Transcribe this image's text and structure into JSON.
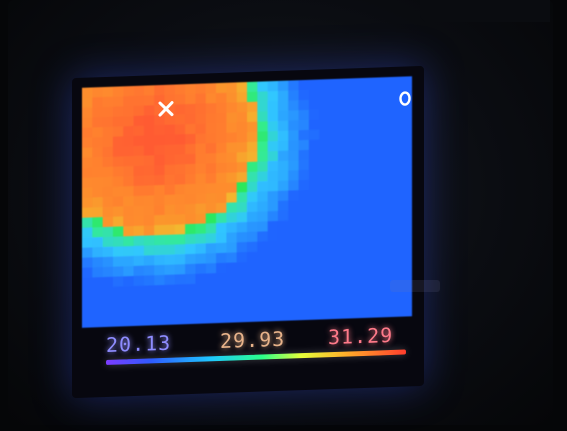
{
  "display": {
    "min_temp": "20.13",
    "center_temp": "29.93",
    "max_temp": "31.29"
  },
  "markers": {
    "max_point_icon": "x-icon",
    "min_point_icon": "circle-icon"
  },
  "colors": {
    "min_color": "#8e8cff",
    "center_color": "#e8b38a",
    "max_color": "#ff7a8a",
    "hot": "#f36a3c",
    "warm": "#eea13a",
    "mid": "#36e06b",
    "cool": "#40c0ff",
    "cold": "#2f7ff5"
  }
}
